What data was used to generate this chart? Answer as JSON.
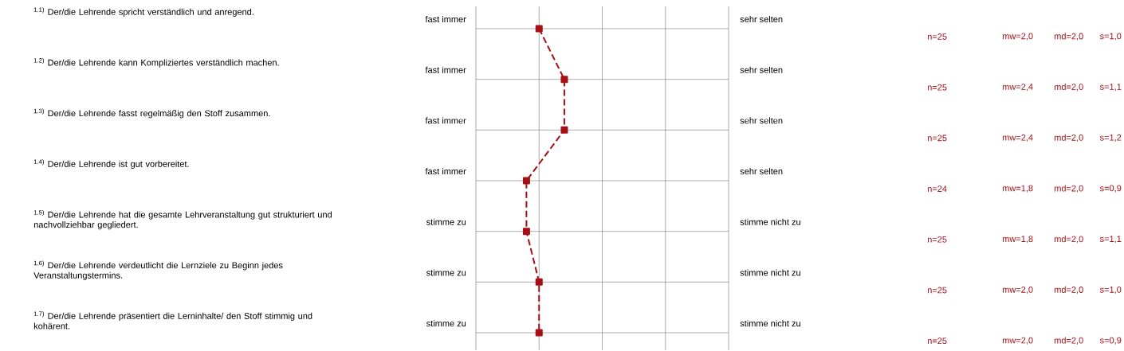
{
  "chart_data": {
    "type": "line",
    "orientation": "horizontal",
    "categories": [
      "$^{1.1)}$ Der/die Lehrende spricht verständlich und anregend.",
      "$^{1.2)}$ Der/die Lehrende kann Kompliziertes verständlich machen.",
      "$^{1.3)}$ Der/die Lehrende fasst regelmäßig den Stoff zusammen.",
      "$^{1.4)}$ Der/die Lehrende ist gut vorbereitet.",
      "$^{1.5)}$ Der/die Lehrende hat die gesamte Lehrveranstaltung gut strukturiert und nachvollziehbar gegliedert.",
      "$^{1.6)}$ Der/die Lehrende verdeutlicht die Lernziele zu Beginn jedes Veranstaltungstermins.",
      "$^{1.7)}$ Der/die Lehrende präsentiert die Lerninhalte/ den Stoff stimmig und kohärent."
    ],
    "values": [
      2.0,
      2.4,
      2.4,
      1.8,
      1.8,
      2.0,
      2.0
    ],
    "value_labels": [
      "mw=2,0",
      "mw=2,4",
      "mw=2,4",
      "mw=1,8",
      "mw=1,8",
      "mw=2,0",
      "mw=2,0"
    ],
    "color": "#a50f15",
    "marker": "square",
    "line_style": "dashed",
    "grid": true,
    "tick_labels": "y",
    "xlim": [
      1,
      5
    ],
    "xticks": [
      {
        "value": 1,
        "label": null
      },
      {
        "value": 2,
        "label": null
      },
      {
        "value": 3,
        "label": null
      },
      {
        "value": 4,
        "label": null
      },
      {
        "value": 5,
        "label": null
      }
    ],
    "annotations": [
      "fast immer",
      "sehr selten",
      "n=25",
      "md=2,0",
      "s=1,0",
      "fast immer",
      "sehr selten",
      "n=25",
      "md=2,0",
      "s=1,1",
      "fast immer",
      "sehr selten",
      "n=25",
      "md=2,0",
      "s=1,2",
      "fast immer",
      "sehr selten",
      "n=24",
      "md=2,0",
      "s=0,9",
      "stimme zu",
      "stimme nicht zu",
      "n=25",
      "md=2,0",
      "s=1,1",
      "stimme zu",
      "stimme nicht zu",
      "n=25",
      "md=2,0",
      "s=1,0",
      "stimme zu",
      "stimme nicht zu",
      "n=25",
      "md=2,0",
      "s=0,9"
    ]
  }
}
